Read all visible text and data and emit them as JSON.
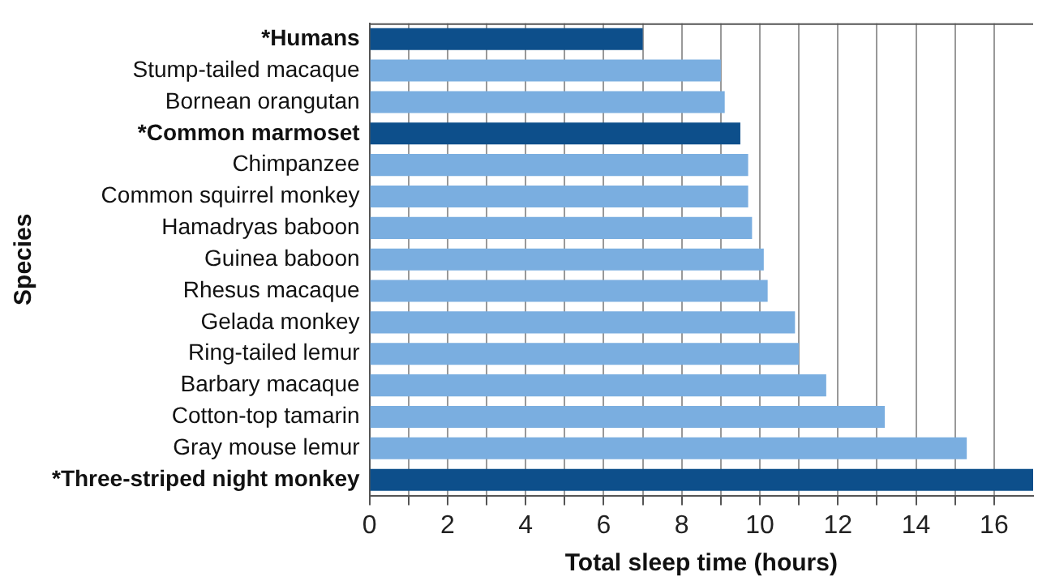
{
  "chart_data": {
    "type": "bar",
    "orientation": "horizontal",
    "xlabel": "Total sleep time (hours)",
    "ylabel": "Species",
    "categories": [
      "*Humans",
      "Stump-tailed macaque",
      "Bornean orangutan",
      "*Common marmoset",
      "Chimpanzee",
      "Common squirrel monkey",
      "Hamadryas baboon",
      "Guinea baboon",
      "Rhesus macaque",
      "Gelada monkey",
      "Ring-tailed lemur",
      "Barbary macaque",
      "Cotton-top tamarin",
      "Gray mouse lemur",
      "*Three-striped night monkey"
    ],
    "values": [
      7.0,
      9.0,
      9.1,
      9.5,
      9.7,
      9.7,
      9.8,
      10.1,
      10.2,
      10.9,
      11.0,
      11.7,
      13.2,
      15.3,
      17.0
    ],
    "colors": [
      "#0d4f8b",
      "#7aaee0",
      "#7aaee0",
      "#0d4f8b",
      "#7aaee0",
      "#7aaee0",
      "#7aaee0",
      "#7aaee0",
      "#7aaee0",
      "#7aaee0",
      "#7aaee0",
      "#7aaee0",
      "#7aaee0",
      "#7aaee0",
      "#0d4f8b"
    ],
    "xlim": [
      0,
      17
    ],
    "xticks": [
      0,
      {
        "value": 1,
        "label": null
      },
      2,
      {
        "value": 3,
        "label": null
      },
      4,
      {
        "value": 5,
        "label": null
      },
      6,
      {
        "value": 7,
        "label": null
      },
      8,
      {
        "value": 9,
        "label": null
      },
      10,
      {
        "value": 11,
        "label": null
      },
      12,
      {
        "value": 13,
        "label": null
      },
      14,
      {
        "value": 15,
        "label": null
      },
      16
    ],
    "grid": "x",
    "legend": false
  }
}
